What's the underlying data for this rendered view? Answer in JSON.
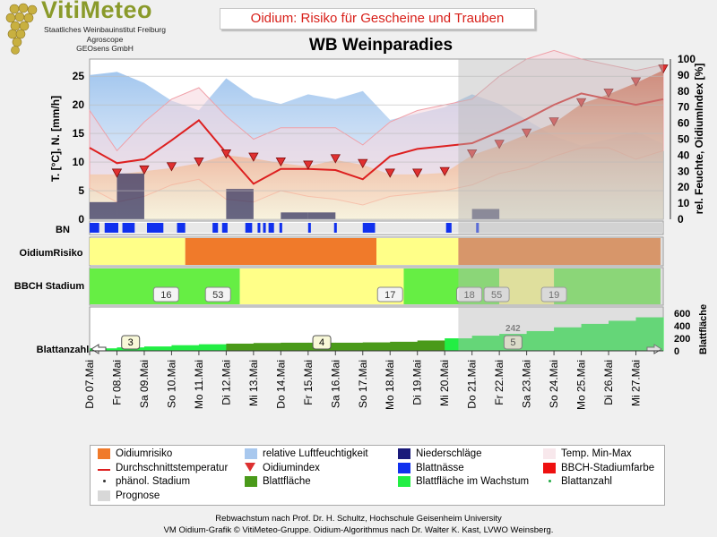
{
  "header": {
    "logo_text": "VitiMeteo",
    "logo_lines": [
      "Staatliches Weinbauinstitut Freiburg",
      "Agroscope",
      "GEOsens GmbH"
    ],
    "title": "Oidium: Risiko für Gescheine und Trauben",
    "station": "WB Weinparadies"
  },
  "chart_data": {
    "type": "multi-panel",
    "dates": [
      "Do 07.Mai",
      "Fr 08.Mai",
      "Sa 09.Mai",
      "So 10.Mai",
      "Mo 11.Mai",
      "Di 12.Mai",
      "Mi 13.Mai",
      "Do 14.Mai",
      "Fr 15.Mai",
      "Sa 16.Mai",
      "So 17.Mai",
      "Mo 18.Mai",
      "Di 19.Mai",
      "Mi 20.Mai",
      "Do 21.Mai",
      "Fr 22.Mai",
      "Sa 23.Mai",
      "So 24.Mai",
      "Mo 25.Mai",
      "Di 26.Mai",
      "Mi 27.Mai"
    ],
    "forecast_start_index": 14,
    "weather_panel": {
      "ylabel_left": "T. [°C], N. [mm/h]",
      "ylabel_right": "rel. Feuchte, OidiumIndex [%]",
      "ylim_left": [
        0,
        28
      ],
      "yticks_left": [
        0,
        5,
        10,
        15,
        20,
        25
      ],
      "ylim_right": [
        0,
        100
      ],
      "yticks_right": [
        0,
        10,
        20,
        30,
        40,
        50,
        60,
        70,
        80,
        90,
        100
      ],
      "mean_temperature": [
        12.5,
        9.8,
        10.5,
        13.8,
        17.3,
        11.6,
        6.2,
        8.8,
        8.8,
        8.6,
        7.0,
        11.0,
        12.3,
        12.8,
        13.3,
        15.3,
        17.5,
        20.0,
        22.0,
        21.0,
        20.0,
        21.0
      ],
      "temp_min": [
        5.5,
        3.0,
        4.0,
        6.0,
        7.0,
        3.5,
        3.0,
        5.0,
        4.0,
        3.5,
        2.5,
        4.0,
        4.5,
        5.0,
        6.0,
        8.0,
        9.0,
        11.0,
        12.5,
        12.5,
        10.5,
        12.0
      ],
      "temp_max": [
        19.0,
        12.0,
        17.0,
        21.0,
        23.0,
        18.0,
        14.0,
        16.0,
        16.0,
        16.0,
        13.0,
        17.0,
        19.0,
        20.0,
        21.0,
        25.0,
        28.0,
        29.5,
        28.0,
        27.0,
        26.0,
        27.0
      ],
      "relative_humidity": [
        90,
        92,
        85,
        74,
        68,
        88,
        76,
        72,
        78,
        75,
        80,
        62,
        66,
        70,
        78,
        72,
        62,
        52,
        46,
        50,
        55,
        47
      ],
      "precipitation": [
        3.0,
        8.0,
        0.0,
        0.0,
        0.0,
        5.3,
        0.0,
        1.2,
        1.2,
        0.0,
        0.0,
        0.0,
        0.0,
        0.0,
        1.8,
        0.0,
        0.0,
        0.0,
        0.0,
        0.0,
        0.0
      ],
      "oidium_index": [
        28,
        28,
        30,
        32,
        35,
        40,
        38,
        35,
        33,
        37,
        34,
        28,
        28,
        29,
        40,
        46,
        53,
        60,
        72,
        78,
        85,
        93
      ]
    },
    "bn_panel": {
      "label": "BN",
      "leaf_wetness_segments": [
        [
          0.0,
          0.35
        ],
        [
          0.55,
          1.05
        ],
        [
          1.2,
          1.65
        ],
        [
          2.1,
          2.7
        ],
        [
          3.2,
          3.5
        ],
        [
          4.5,
          4.7
        ],
        [
          4.85,
          5.05
        ],
        [
          5.7,
          5.95
        ],
        [
          6.15,
          6.25
        ],
        [
          6.35,
          6.45
        ],
        [
          6.55,
          6.75
        ],
        [
          6.95,
          7.05
        ],
        [
          8.0,
          8.1
        ],
        [
          8.95,
          9.05
        ],
        [
          10.0,
          10.45
        ],
        [
          13.05,
          13.25
        ],
        [
          14.15,
          14.25
        ]
      ]
    },
    "risk_panel": {
      "label": "OidiumRisiko",
      "segments": [
        {
          "from": 0.0,
          "to": 3.5,
          "level": "niedrig",
          "color": "#ffff88"
        },
        {
          "from": 3.5,
          "to": 10.5,
          "level": "hoch",
          "color": "#f07a2a"
        },
        {
          "from": 10.5,
          "to": 13.5,
          "level": "niedrig",
          "color": "#ffff88"
        },
        {
          "from": 13.5,
          "to": 20.9,
          "level": "hoch",
          "color": "#f07a2a"
        }
      ]
    },
    "bbch_panel": {
      "label": "BBCH Stadium",
      "segments": [
        {
          "from": 0.0,
          "to": 5.5,
          "color": "#66ee44"
        },
        {
          "from": 5.5,
          "to": 11.5,
          "color": "#ffff88"
        },
        {
          "from": 11.5,
          "to": 15.0,
          "color": "#66ee44"
        },
        {
          "from": 15.0,
          "to": 17.0,
          "color": "#ffff88"
        },
        {
          "from": 17.0,
          "to": 20.9,
          "color": "#66ee44"
        }
      ],
      "stages": [
        {
          "x": 2.8,
          "value": "16"
        },
        {
          "x": 4.7,
          "value": "53"
        },
        {
          "x": 11.0,
          "value": "17"
        },
        {
          "x": 13.9,
          "value": "18"
        },
        {
          "x": 14.9,
          "value": "55"
        },
        {
          "x": 17.0,
          "value": "19"
        }
      ]
    },
    "leaf_panel": {
      "label": "Blattanzahl",
      "ylabel_right": "Blattfläche",
      "ylim": [
        0,
        700
      ],
      "yticks": [
        0,
        200,
        400,
        600
      ],
      "leaf_area": [
        40,
        55,
        70,
        90,
        105,
        115,
        125,
        130,
        130,
        130,
        135,
        145,
        165,
        200,
        242,
        270,
        315,
        375,
        430,
        480,
        535,
        600
      ],
      "leaf_count_labels": [
        {
          "x": 1.5,
          "value": "3"
        },
        {
          "x": 8.5,
          "value": "4"
        },
        {
          "x": 15.5,
          "value": "5"
        }
      ],
      "leaf_area_label": {
        "x": 15.5,
        "value": "242"
      }
    }
  },
  "legend": {
    "items": [
      {
        "label": "Oidiumrisiko",
        "symbol": "square",
        "color": "#f07a2a"
      },
      {
        "label": "relative Luftfeuchtigkeit",
        "symbol": "square",
        "color": "#a8c8ee"
      },
      {
        "label": "Niederschläge",
        "symbol": "square",
        "color": "#1a1a7a"
      },
      {
        "label": "Temp. Min-Max",
        "symbol": "square",
        "color": "#f8e8ec"
      },
      {
        "label": "Durchschnittstemperatur",
        "symbol": "line",
        "color": "#dd2020"
      },
      {
        "label": "Oidiumindex",
        "symbol": "triangle",
        "color": "#dd3030"
      },
      {
        "label": "Blattnässe",
        "symbol": "square",
        "color": "#1030ee"
      },
      {
        "label": "BBCH-Stadiumfarbe",
        "symbol": "square",
        "color": "#ee1010"
      },
      {
        "label": "phänol. Stadium",
        "symbol": "dot",
        "color": "#333333"
      },
      {
        "label": "Blattfläche",
        "symbol": "square",
        "color": "#4a9a1a"
      },
      {
        "label": "Blattfläche im Wachstum",
        "symbol": "square",
        "color": "#22ee44"
      },
      {
        "label": "Blattanzahl",
        "symbol": "dot",
        "color": "#22aa44"
      },
      {
        "label": "Prognose",
        "symbol": "square",
        "color": "#d8d8d8"
      }
    ]
  },
  "footer": {
    "line1": "Rebwachstum nach Prof. Dr. H. Schultz, Hochschule Geisenheim University",
    "line2": "VM Oidium-Grafik © VitiMeteo-Gruppe. Oidium-Algorithmus nach Dr. Walter K. Kast, LVWO Weinsberg."
  }
}
